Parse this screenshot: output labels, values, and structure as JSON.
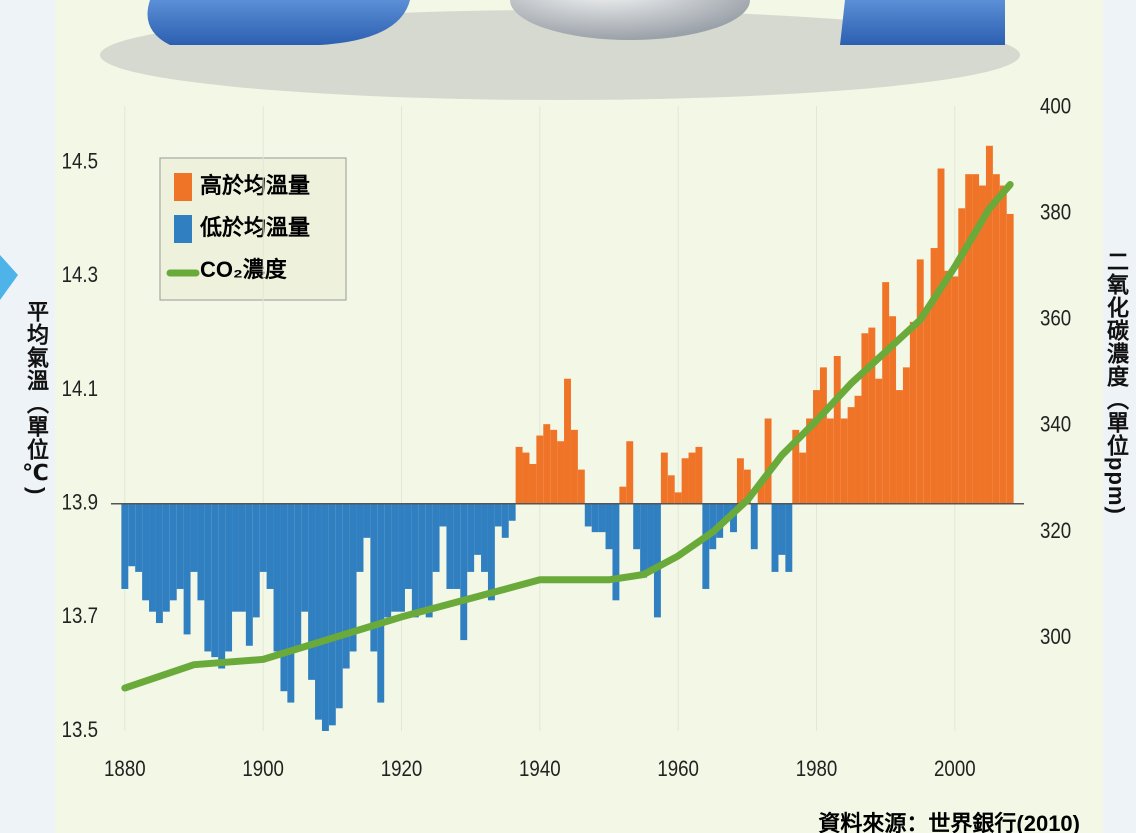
{
  "chart_data": {
    "type": "bar",
    "x": [
      1880,
      1881,
      1882,
      1883,
      1884,
      1885,
      1886,
      1887,
      1888,
      1889,
      1890,
      1891,
      1892,
      1893,
      1894,
      1895,
      1896,
      1897,
      1898,
      1899,
      1900,
      1901,
      1902,
      1903,
      1904,
      1905,
      1906,
      1907,
      1908,
      1909,
      1910,
      1911,
      1912,
      1913,
      1914,
      1915,
      1916,
      1917,
      1918,
      1919,
      1920,
      1921,
      1922,
      1923,
      1924,
      1925,
      1926,
      1927,
      1928,
      1929,
      1930,
      1931,
      1932,
      1933,
      1934,
      1935,
      1936,
      1937,
      1938,
      1939,
      1940,
      1941,
      1942,
      1943,
      1944,
      1945,
      1946,
      1947,
      1948,
      1949,
      1950,
      1951,
      1952,
      1953,
      1954,
      1955,
      1956,
      1957,
      1958,
      1959,
      1960,
      1961,
      1962,
      1963,
      1964,
      1965,
      1966,
      1967,
      1968,
      1969,
      1970,
      1971,
      1972,
      1973,
      1974,
      1975,
      1976,
      1977,
      1978,
      1979,
      1980,
      1981,
      1982,
      1983,
      1984,
      1985,
      1986,
      1987,
      1988,
      1989,
      1990,
      1991,
      1992,
      1993,
      1994,
      1995,
      1996,
      1997,
      1998,
      1999,
      2000,
      2001,
      2002,
      2003,
      2004,
      2005,
      2006,
      2007,
      2008
    ],
    "baseline": 13.9,
    "series": [
      {
        "name": "高於均溫量",
        "color": "#f07427",
        "values": [
          null,
          null,
          null,
          null,
          null,
          null,
          null,
          null,
          null,
          null,
          null,
          null,
          null,
          null,
          null,
          null,
          null,
          null,
          null,
          null,
          null,
          null,
          null,
          null,
          null,
          null,
          null,
          null,
          null,
          null,
          null,
          null,
          null,
          null,
          null,
          null,
          null,
          null,
          null,
          null,
          null,
          null,
          null,
          null,
          null,
          null,
          null,
          null,
          null,
          null,
          null,
          null,
          null,
          null,
          null,
          null,
          null,
          14.0,
          13.99,
          13.97,
          14.02,
          14.04,
          14.03,
          14.01,
          14.12,
          14.03,
          13.96,
          null,
          null,
          null,
          null,
          null,
          13.93,
          14.01,
          null,
          null,
          null,
          null,
          13.99,
          13.95,
          13.92,
          13.98,
          13.99,
          14.0,
          null,
          null,
          null,
          null,
          null,
          13.98,
          13.96,
          null,
          13.94,
          14.05,
          null,
          null,
          null,
          14.03,
          13.99,
          14.05,
          14.1,
          14.14,
          14.05,
          14.16,
          14.05,
          14.07,
          14.09,
          14.2,
          14.21,
          14.12,
          14.29,
          14.23,
          14.1,
          14.14,
          14.22,
          14.33,
          14.24,
          14.35,
          14.49,
          14.31,
          14.3,
          14.42,
          14.48,
          14.48,
          14.46,
          14.53,
          14.48,
          14.46,
          14.41
        ]
      },
      {
        "name": "低於均溫量",
        "color": "#2f7fc1",
        "values": [
          13.75,
          13.79,
          13.78,
          13.73,
          13.71,
          13.69,
          13.71,
          13.73,
          13.75,
          13.67,
          13.78,
          13.73,
          13.64,
          13.63,
          13.61,
          13.64,
          13.71,
          13.71,
          13.65,
          13.7,
          13.78,
          13.75,
          13.64,
          13.57,
          13.55,
          13.64,
          13.71,
          13.59,
          13.52,
          13.5,
          13.51,
          13.54,
          13.61,
          13.64,
          13.78,
          13.84,
          13.64,
          13.55,
          13.7,
          13.71,
          13.71,
          13.75,
          13.7,
          13.71,
          13.7,
          13.78,
          13.86,
          13.75,
          13.75,
          13.66,
          13.78,
          13.81,
          13.78,
          13.73,
          13.86,
          13.84,
          13.87,
          null,
          null,
          null,
          null,
          null,
          null,
          null,
          null,
          null,
          null,
          13.86,
          13.85,
          13.85,
          13.82,
          13.73,
          null,
          null,
          13.82,
          13.77,
          13.78,
          13.7,
          null,
          null,
          null,
          null,
          null,
          null,
          13.75,
          13.82,
          13.84,
          13.87,
          13.85,
          null,
          null,
          13.82,
          null,
          null,
          13.78,
          13.81,
          13.78,
          null,
          null,
          null,
          null,
          null,
          null,
          null,
          null,
          null,
          null,
          null,
          null,
          null,
          null,
          null,
          null,
          null,
          null,
          null,
          null,
          null,
          null,
          null,
          null,
          null,
          null,
          null,
          null,
          null,
          null,
          null,
          null
        ]
      },
      {
        "name": "CO₂濃度",
        "color": "#6aaa3a",
        "axis": "y2",
        "type": "line",
        "x": [
          1880,
          1890,
          1900,
          1910,
          1920,
          1930,
          1940,
          1950,
          1955,
          1960,
          1965,
          1970,
          1975,
          1980,
          1985,
          1990,
          1995,
          2000,
          2005,
          2008
        ],
        "values": [
          290.6,
          295,
          296,
          300,
          304,
          307.5,
          311,
          311,
          312,
          315.5,
          320,
          326,
          334.5,
          341,
          348,
          354,
          360,
          370,
          381,
          385.5
        ]
      }
    ],
    "xlim": [
      1878,
      2010
    ],
    "xticks": [
      1880,
      1900,
      1920,
      1940,
      1960,
      1980,
      2000
    ],
    "ylim": [
      13.5,
      14.6
    ],
    "yticks": [
      13.5,
      13.7,
      13.9,
      14.1,
      14.3,
      14.5
    ],
    "y2lim": [
      282.5,
      400.3
    ],
    "y2ticks": [
      300,
      320,
      340,
      360,
      380,
      400
    ],
    "ylabel": "平均氣溫（單位℃)",
    "y2label": "二氧化碳濃度（單位ppm)",
    "source": "資料來源：世界銀行(2010)",
    "legend": "upper left"
  }
}
